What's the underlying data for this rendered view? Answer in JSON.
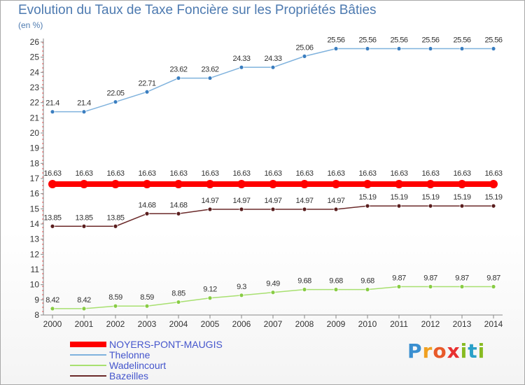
{
  "title": "Evolution du Taux de Taxe Foncière sur les Propriétés Bâties",
  "subtitle": "(en %)",
  "chart_data": {
    "type": "line",
    "ylim": [
      8,
      26
    ],
    "yticks": [
      8,
      9,
      10,
      11,
      12,
      13,
      14,
      15,
      16,
      17,
      18,
      19,
      20,
      21,
      22,
      23,
      24,
      25,
      26
    ],
    "categories": [
      "2000",
      "2001",
      "2002",
      "2003",
      "2004",
      "2005",
      "2006",
      "2007",
      "2008",
      "2009",
      "2010",
      "2011",
      "2012",
      "2013",
      "2014"
    ],
    "grid": false,
    "legend_position": "bottom-left",
    "series": [
      {
        "name": "NOYERS-PONT-MAUGIS",
        "color": "#ff0000",
        "values": [
          16.63,
          16.63,
          16.63,
          16.63,
          16.63,
          16.63,
          16.63,
          16.63,
          16.63,
          16.63,
          16.63,
          16.63,
          16.63,
          16.63,
          16.63
        ],
        "labels": [
          "16.63",
          "16.63",
          "16.63",
          "16.63",
          "16.63",
          "16.63",
          "16.63",
          "16.63",
          "16.63",
          "16.63",
          "16.63",
          "16.63",
          "16.63",
          "16.63",
          "16.63"
        ]
      },
      {
        "name": "Thelonne",
        "color": "#7fb2dd",
        "values": [
          21.4,
          21.4,
          22.05,
          22.71,
          23.62,
          23.62,
          24.33,
          24.33,
          25.06,
          25.56,
          25.56,
          25.56,
          25.56,
          25.56,
          25.56
        ],
        "labels": [
          "21.4",
          "21.4",
          "22.05",
          "22.71",
          "23.62",
          "23.62",
          "24.33",
          "24.33",
          "25.06",
          "25.56",
          "25.56",
          "25.56",
          "25.56",
          "25.56",
          "25.56"
        ]
      },
      {
        "name": "Wadelincourt",
        "color": "#a8e070",
        "values": [
          8.42,
          8.42,
          8.59,
          8.59,
          8.85,
          9.12,
          9.3,
          9.49,
          9.68,
          9.68,
          9.68,
          9.87,
          9.87,
          9.87,
          9.87
        ],
        "labels": [
          "8.42",
          "8.42",
          "8.59",
          "8.59",
          "8.85",
          "9.12",
          "9.3",
          "9.49",
          "9.68",
          "9.68",
          "9.68",
          "9.87",
          "9.87",
          "9.87",
          "9.87"
        ]
      },
      {
        "name": "Bazeilles",
        "color": "#6b2a2a",
        "values": [
          13.85,
          13.85,
          13.85,
          14.68,
          14.68,
          14.97,
          14.97,
          14.97,
          14.97,
          14.97,
          15.19,
          15.19,
          15.19,
          15.19,
          15.19
        ],
        "labels": [
          "13.85",
          "13.85",
          "13.85",
          "14.68",
          "14.68",
          "14.97",
          "14.97",
          "14.97",
          "14.97",
          "14.97",
          "15.19",
          "15.19",
          "15.19",
          "15.19",
          "15.19"
        ]
      }
    ]
  },
  "logo": {
    "p": "P",
    "r": "r",
    "o": "o",
    "x": "x",
    "i": "i",
    "t": "t",
    "i2": "i"
  }
}
